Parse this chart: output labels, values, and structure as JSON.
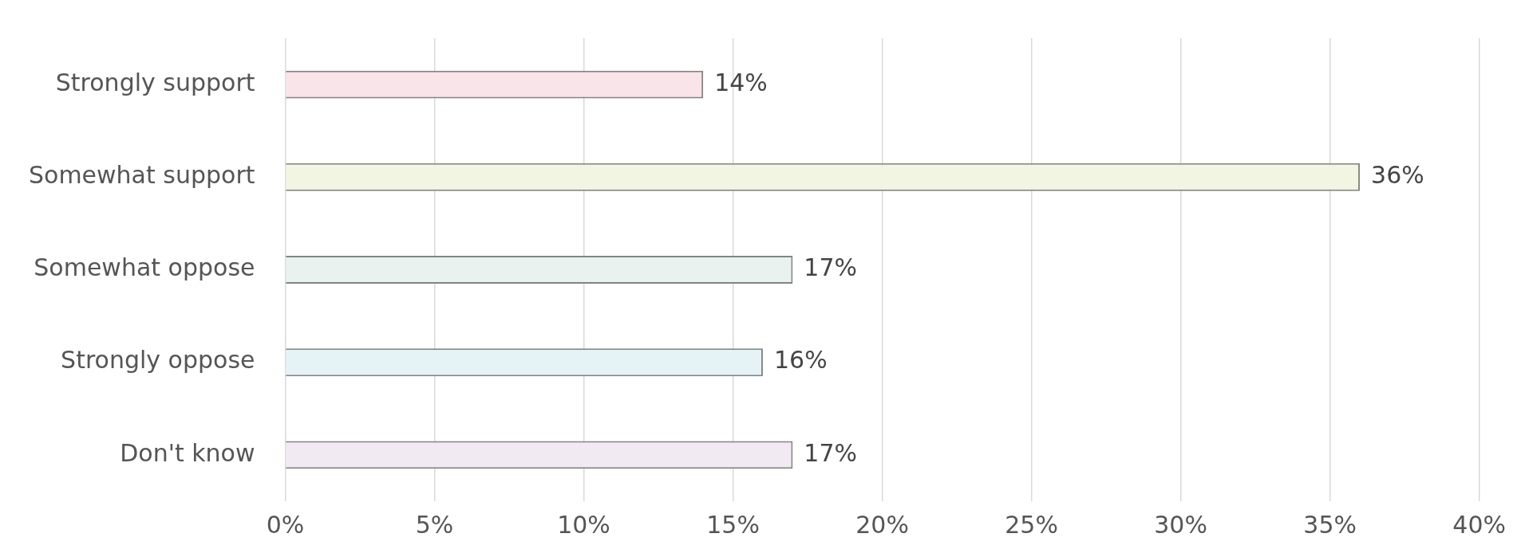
{
  "chart_data": {
    "type": "bar",
    "orientation": "horizontal",
    "categories": [
      "Strongly support",
      "Somewhat support",
      "Somewhat oppose",
      "Strongly oppose",
      "Don't know"
    ],
    "values": [
      14,
      36,
      17,
      16,
      17
    ],
    "colors": [
      "#f8e4e9",
      "#f2f5e2",
      "#e9f2ee",
      "#e6f3f6",
      "#f2eaf2"
    ],
    "value_labels": [
      "14%",
      "36%",
      "17%",
      "16%",
      "17%"
    ],
    "xlim": [
      0,
      40
    ],
    "xticks": [
      {
        "value": 0,
        "label": "0%"
      },
      {
        "value": 5,
        "label": "5%"
      },
      {
        "value": 10,
        "label": "10%"
      },
      {
        "value": 15,
        "label": "15%"
      },
      {
        "value": 20,
        "label": "20%"
      },
      {
        "value": 25,
        "label": "25%"
      },
      {
        "value": 30,
        "label": "30%"
      },
      {
        "value": 35,
        "label": "35%"
      },
      {
        "value": 40,
        "label": "40%"
      }
    ],
    "grid": "x",
    "legend": false
  }
}
